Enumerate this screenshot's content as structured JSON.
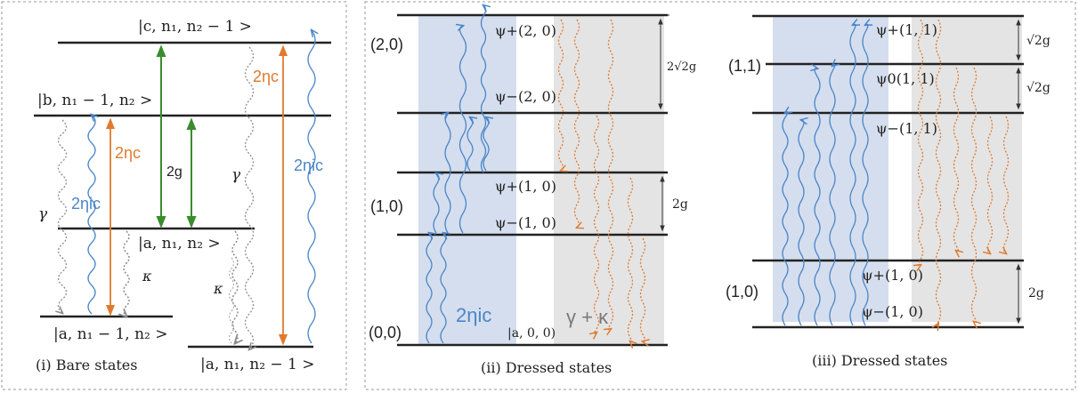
{
  "colors": {
    "blue": "#4a86c8",
    "orange": "#e07a2e",
    "green": "#3a8c2e",
    "gray": "#8a8a8a",
    "panel_border": "#9a9a9a",
    "blue_band": "#c7d3e8",
    "gray_band": "#dddddd"
  },
  "panel1": {
    "caption": "(i) Bare states",
    "levels": {
      "c": "|c, n₁, n₂ − 1 >",
      "b": "|b, n₁ − 1, n₂ >",
      "a": "|a, n₁, n₂ >",
      "a_low1": "|a, n₁ − 1, n₂ >",
      "a_low2": "|a, n₁, n₂ − 1 >"
    },
    "labels": {
      "eta_c_left": "2ηc",
      "eta_c_right": "2ηc",
      "eta_ic_left": "2ηic",
      "eta_ic_right": "2ηic",
      "two_g": "2g",
      "gamma_left": "γ",
      "gamma_right": "γ",
      "kappa_left": "κ",
      "kappa_right": "κ"
    }
  },
  "panel2": {
    "caption": "(ii) Dressed states",
    "manifolds": [
      "(2,0)",
      "(1,0)",
      "(0,0)"
    ],
    "states": [
      "ψ+(2, 0)",
      "ψ−(2, 0)",
      "ψ+(1, 0)",
      "ψ−(1, 0)"
    ],
    "ground": "|a, 0, 0)",
    "spacing_top": "2√2g",
    "spacing_mid": "2g",
    "drive_label": "2ηic",
    "decay_label": "γ + κ"
  },
  "panel3": {
    "caption": "(iii) Dressed states",
    "manifolds": [
      "(1,1)",
      "(1,0)"
    ],
    "states": [
      "ψ+(1, 1)",
      "ψ0(1, 1)",
      "ψ−(1, 1)",
      "ψ+(1, 0)",
      "ψ−(1, 0)"
    ],
    "spacing_a": "√2g",
    "spacing_b": "√2g",
    "spacing_c": "2g"
  }
}
